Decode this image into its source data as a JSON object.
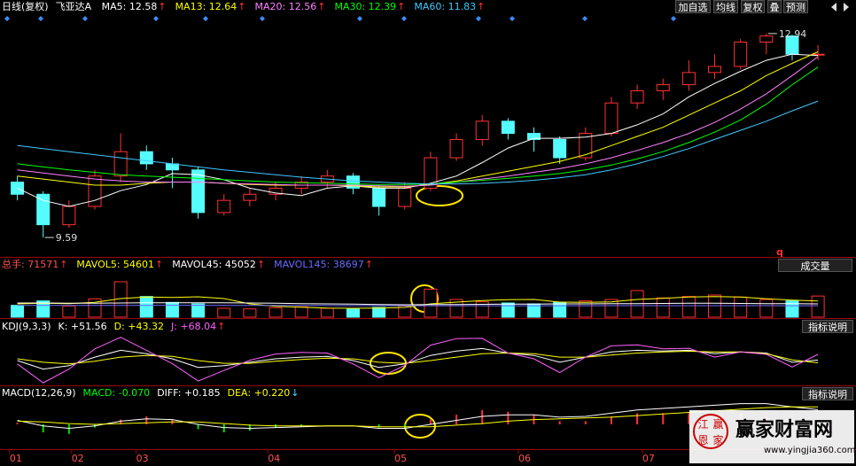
{
  "chart_data": {
    "type": "candlestick",
    "period_label": "日线(复权)",
    "stock_name": "飞亚达A",
    "ma_header": [
      {
        "text": "MA5: 12.58",
        "arrow": "↑",
        "color": "#ffffff"
      },
      {
        "text": "MA13: 12.64",
        "arrow": "↑",
        "color": "#ffff00"
      },
      {
        "text": "MA20: 12.56",
        "arrow": "↑",
        "color": "#ff80ff"
      },
      {
        "text": "MA30: 12.39",
        "arrow": "↑",
        "color": "#00ff00"
      },
      {
        "text": "MA60: 11.83",
        "arrow": "↑",
        "color": "#40c8ff"
      }
    ],
    "arrow_up_color": "#ff3030",
    "arrow_down_color": "#40e0ff",
    "toolbar": [
      "加自选",
      "均线",
      "复权",
      "叠",
      "预测"
    ],
    "corner_mark": "q",
    "xlim": [
      -0.5,
      32.3
    ],
    "xticks": [
      {
        "value": -0.3,
        "label": "01"
      },
      {
        "value": 2.1,
        "label": "02"
      },
      {
        "value": 4.6,
        "label": "03"
      },
      {
        "value": 9.7,
        "label": "04"
      },
      {
        "value": 14.6,
        "label": "05"
      },
      {
        "value": 19.4,
        "label": "06"
      },
      {
        "value": 24.2,
        "label": "07"
      }
    ],
    "ylim": [
      9.3,
      13.2
    ],
    "up_color": "#ff3232",
    "down_color": "#54fcfc",
    "high_label": "12.94",
    "low_label": "9.59",
    "candles": [
      [
        10.5,
        10.6,
        10.2,
        10.3
      ],
      [
        10.3,
        10.35,
        9.59,
        9.8
      ],
      [
        9.8,
        10.2,
        9.75,
        10.1
      ],
      [
        10.1,
        10.7,
        10.05,
        10.6
      ],
      [
        10.6,
        11.3,
        10.5,
        11.0
      ],
      [
        11.0,
        11.1,
        10.7,
        10.8
      ],
      [
        10.8,
        10.9,
        10.4,
        10.7
      ],
      [
        10.7,
        10.75,
        9.9,
        10.0
      ],
      [
        10.0,
        10.3,
        9.95,
        10.2
      ],
      [
        10.2,
        10.4,
        10.1,
        10.3
      ],
      [
        10.3,
        10.5,
        10.2,
        10.4
      ],
      [
        10.4,
        10.6,
        10.3,
        10.5
      ],
      [
        10.5,
        10.7,
        10.4,
        10.6
      ],
      [
        10.6,
        10.65,
        10.3,
        10.4
      ],
      [
        10.4,
        10.45,
        9.95,
        10.1
      ],
      [
        10.1,
        10.5,
        10.05,
        10.4
      ],
      [
        10.4,
        11.0,
        10.35,
        10.9
      ],
      [
        10.9,
        11.3,
        10.85,
        11.2
      ],
      [
        11.2,
        11.6,
        11.1,
        11.5
      ],
      [
        11.5,
        11.55,
        11.2,
        11.3
      ],
      [
        11.3,
        11.4,
        11.0,
        11.2
      ],
      [
        11.2,
        11.25,
        10.8,
        10.9
      ],
      [
        10.9,
        11.4,
        10.85,
        11.3
      ],
      [
        11.3,
        11.9,
        11.25,
        11.8
      ],
      [
        11.8,
        12.1,
        11.7,
        12.0
      ],
      [
        12.0,
        12.2,
        11.85,
        12.1
      ],
      [
        12.1,
        12.5,
        12.0,
        12.3
      ],
      [
        12.3,
        12.6,
        12.2,
        12.4
      ],
      [
        12.4,
        12.85,
        12.35,
        12.8
      ],
      [
        12.8,
        12.94,
        12.6,
        12.9
      ],
      [
        12.9,
        12.92,
        12.5,
        12.6
      ],
      [
        12.6,
        12.75,
        12.5,
        12.6
      ]
    ],
    "series": [
      {
        "color": "#ffffff",
        "values": [
          10.4,
          10.2,
          10.1,
          10.2,
          10.36,
          10.46,
          10.64,
          10.62,
          10.54,
          10.4,
          10.32,
          10.28,
          10.4,
          10.44,
          10.4,
          10.4,
          10.48,
          10.6,
          10.82,
          11.06,
          11.22,
          11.22,
          11.24,
          11.3,
          11.44,
          11.62,
          11.9,
          12.12,
          12.32,
          12.5,
          12.6,
          12.58
        ]
      },
      {
        "color": "#ffff00",
        "values": [
          10.6,
          10.55,
          10.5,
          10.45,
          10.45,
          10.48,
          10.5,
          10.5,
          10.48,
          10.46,
          10.45,
          10.45,
          10.45,
          10.44,
          10.42,
          10.42,
          10.46,
          10.52,
          10.6,
          10.68,
          10.76,
          10.84,
          10.95,
          11.1,
          11.25,
          11.4,
          11.6,
          11.8,
          12.0,
          12.25,
          12.45,
          12.64
        ]
      },
      {
        "color": "#ff80ff",
        "values": [
          10.7,
          10.65,
          10.6,
          10.55,
          10.52,
          10.5,
          10.5,
          10.5,
          10.48,
          10.47,
          10.46,
          10.45,
          10.45,
          10.45,
          10.44,
          10.43,
          10.45,
          10.5,
          10.55,
          10.6,
          10.66,
          10.72,
          10.8,
          10.9,
          11.02,
          11.15,
          11.3,
          11.48,
          11.7,
          11.95,
          12.25,
          12.56
        ]
      },
      {
        "color": "#00ff00",
        "values": [
          10.8,
          10.75,
          10.7,
          10.66,
          10.62,
          10.6,
          10.58,
          10.56,
          10.54,
          10.52,
          10.5,
          10.49,
          10.48,
          10.47,
          10.46,
          10.46,
          10.47,
          10.5,
          10.53,
          10.56,
          10.6,
          10.64,
          10.7,
          10.78,
          10.88,
          11.0,
          11.15,
          11.32,
          11.52,
          11.78,
          12.1,
          12.39
        ]
      },
      {
        "color": "#40c8ff",
        "values": [
          11.1,
          11.05,
          11.0,
          10.95,
          10.9,
          10.85,
          10.8,
          10.75,
          10.7,
          10.66,
          10.62,
          10.58,
          10.55,
          10.52,
          10.5,
          10.48,
          10.47,
          10.47,
          10.48,
          10.5,
          10.53,
          10.57,
          10.62,
          10.7,
          10.8,
          10.92,
          11.05,
          11.2,
          11.35,
          11.5,
          11.67,
          11.83
        ]
      }
    ],
    "volume": {
      "header": [
        {
          "text": "总手: 71571",
          "arrow": "↑",
          "color": "#ff5050"
        },
        {
          "text": "MAVOL5: 54601",
          "arrow": "↑",
          "color": "#ffff00"
        },
        {
          "text": "MAVOL45: 45052",
          "arrow": "↑",
          "color": "#ffffff"
        },
        {
          "text": "MAVOL145: 38697",
          "arrow": "↑",
          "color": "#6a6aff"
        }
      ],
      "dropdown": "成交量",
      "ylim": [
        0,
        150000
      ],
      "values": [
        40000,
        55000,
        38000,
        62000,
        120000,
        70000,
        50000,
        45000,
        30000,
        28000,
        32000,
        35000,
        30000,
        27000,
        33000,
        38000,
        95000,
        60000,
        52000,
        48000,
        45000,
        50000,
        55000,
        60000,
        90000,
        65000,
        70000,
        75000,
        68000,
        60000,
        55000,
        71571
      ],
      "series": [
        {
          "color": "#ffff00",
          "values": [
            45000,
            47000,
            46000,
            50000,
            63000,
            68000,
            67000,
            69000,
            63000,
            45000,
            37000,
            34000,
            31000,
            30000,
            31000,
            33000,
            45000,
            51000,
            56000,
            59000,
            60000,
            51000,
            50000,
            52000,
            60000,
            64000,
            68000,
            70000,
            68000,
            62000,
            58000,
            54601
          ]
        },
        {
          "color": "#ffffff",
          "values": [
            48000,
            48000,
            47500,
            47500,
            48000,
            48500,
            49000,
            49000,
            48500,
            48000,
            47000,
            46000,
            45000,
            44000,
            43000,
            42000,
            42500,
            43000,
            43500,
            44000,
            44500,
            45000,
            45000,
            45500,
            46000,
            46500,
            47000,
            47000,
            46500,
            46000,
            45500,
            45052
          ]
        },
        {
          "color": "#6a6aff",
          "values": [
            40000,
            40000,
            39800,
            39800,
            39900,
            40000,
            40100,
            40100,
            40000,
            39900,
            39700,
            39500,
            39300,
            39100,
            38900,
            38700,
            38600,
            38600,
            38600,
            38700,
            38700,
            38800,
            38800,
            38900,
            39000,
            39000,
            39100,
            39100,
            39000,
            38900,
            38800,
            38697
          ]
        }
      ]
    },
    "kdj": {
      "header": [
        {
          "text": "KDJ(9,3,3)",
          "color": "#ffffff"
        },
        {
          "text": "K: +51.56",
          "color": "#ffffff"
        },
        {
          "text": "D: +43.32",
          "color": "#ffff00"
        },
        {
          "text": "J: +68.04",
          "arrow": "↑",
          "color": "#ff60ff"
        }
      ],
      "button": "指标说明",
      "ylim": [
        -20,
        125
      ],
      "series": [
        {
          "color": "#ffffff",
          "values": [
            50,
            25,
            35,
            60,
            80,
            70,
            55,
            30,
            35,
            45,
            55,
            60,
            62,
            50,
            30,
            40,
            65,
            78,
            85,
            72,
            65,
            45,
            60,
            75,
            80,
            78,
            80,
            70,
            75,
            72,
            45,
            51.56
          ]
        },
        {
          "color": "#ffff00",
          "values": [
            55,
            45,
            40,
            48,
            60,
            65,
            62,
            50,
            42,
            42,
            48,
            53,
            57,
            55,
            45,
            42,
            50,
            60,
            70,
            72,
            70,
            60,
            60,
            66,
            72,
            75,
            77,
            75,
            75,
            70,
            52,
            43.32
          ]
        },
        {
          "color": "#ff60ff",
          "values": [
            40,
            -15,
            25,
            84,
            118,
            80,
            41,
            -10,
            21,
            51,
            69,
            74,
            72,
            40,
            0,
            36,
            95,
            114,
            115,
            72,
            55,
            15,
            60,
            93,
            96,
            84,
            86,
            60,
            75,
            68,
            31,
            68.04
          ]
        }
      ]
    },
    "macd": {
      "header": [
        {
          "text": "MACD(12,26,9)",
          "color": "#ffffff"
        },
        {
          "text": "MACD: -0.070",
          "color": "#00ff00"
        },
        {
          "text": "DIFF: +0.185",
          "color": "#ffffff"
        },
        {
          "text": "DEA: +0.220",
          "arrow": "↓",
          "color": "#ffff00"
        }
      ],
      "button": "指标说明",
      "ylim": [
        -0.3,
        0.3
      ],
      "pos_color": "#ff3232",
      "neg_color": "#00e000",
      "histogram": [
        0.02,
        -0.1,
        -0.12,
        -0.04,
        0.06,
        0.1,
        0.06,
        -0.06,
        -0.1,
        -0.08,
        -0.04,
        -0.02,
        0,
        0,
        -0.04,
        -0.04,
        0.06,
        0.12,
        0.18,
        0.16,
        0.12,
        0.04,
        0.04,
        0.1,
        0.14,
        0.14,
        0.14,
        0.14,
        0.14,
        0.1,
        0,
        -0.07
      ],
      "series": [
        {
          "color": "#ffffff",
          "values": [
            0.05,
            -0.02,
            -0.05,
            -0.02,
            0.04,
            0.07,
            0.06,
            0.0,
            -0.04,
            -0.05,
            -0.04,
            -0.03,
            -0.02,
            -0.02,
            -0.05,
            -0.05,
            0.0,
            0.05,
            0.1,
            0.12,
            0.12,
            0.09,
            0.1,
            0.14,
            0.18,
            0.2,
            0.22,
            0.24,
            0.26,
            0.26,
            0.22,
            0.185
          ]
        },
        {
          "color": "#ffff00",
          "values": [
            0.04,
            0.03,
            0.01,
            0.0,
            0.01,
            0.02,
            0.03,
            0.03,
            0.01,
            -0.01,
            -0.02,
            -0.02,
            -0.02,
            -0.02,
            -0.03,
            -0.03,
            -0.03,
            -0.01,
            0.01,
            0.04,
            0.06,
            0.07,
            0.08,
            0.09,
            0.11,
            0.13,
            0.15,
            0.17,
            0.19,
            0.21,
            0.22,
            0.22
          ]
        }
      ]
    },
    "watermark": {
      "brand": "赢家财富网",
      "url": "www.yingjia360.com",
      "seal": [
        "江",
        "赢",
        "恩",
        "家"
      ]
    }
  }
}
